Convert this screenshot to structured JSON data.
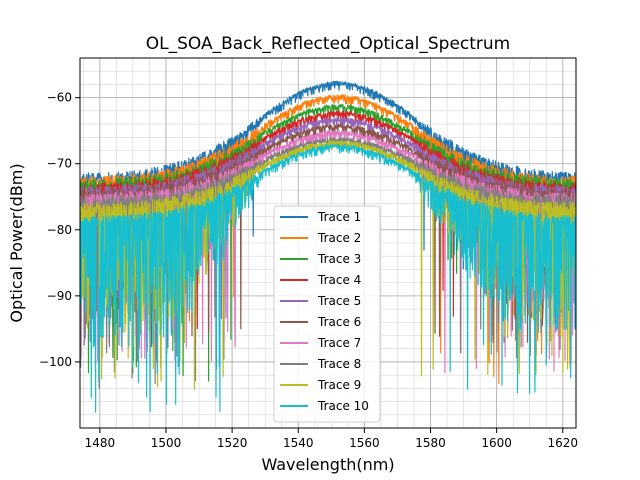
{
  "chart_data": {
    "type": "line",
    "title": "OL_SOA_Back_Reflected_Optical_Spectrum",
    "xlabel": "Wavelength(nm)",
    "ylabel": "Optical Power(dBm)",
    "xlim": [
      1474,
      1624
    ],
    "ylim": [
      -110,
      -54
    ],
    "xticks": [
      1480,
      1500,
      1520,
      1540,
      1560,
      1580,
      1600,
      1620
    ],
    "yticks": [
      -100,
      -90,
      -80,
      -70,
      -60
    ],
    "grid": true,
    "minor_grid": true,
    "legend_position": "lower-center",
    "series": [
      {
        "name": "Trace 1",
        "color": "#1f77b4",
        "peak": -57.5,
        "edge": -71.5,
        "floor_left": -80,
        "floor_right": -78
      },
      {
        "name": "Trace 2",
        "color": "#ff7f0e",
        "peak": -59.5,
        "edge": -72.0,
        "floor_left": -86,
        "floor_right": -96
      },
      {
        "name": "Trace 3",
        "color": "#2ca02c",
        "peak": -61.0,
        "edge": -72.5,
        "floor_left": -95,
        "floor_right": -82
      },
      {
        "name": "Trace 4",
        "color": "#d62728",
        "peak": -62.0,
        "edge": -73.0,
        "floor_left": -88,
        "floor_right": -86
      },
      {
        "name": "Trace 5",
        "color": "#9467bd",
        "peak": -63.0,
        "edge": -73.5,
        "floor_left": -90,
        "floor_right": -88
      },
      {
        "name": "Trace 6",
        "color": "#8c564b",
        "peak": -64.0,
        "edge": -74.0,
        "floor_left": -92,
        "floor_right": -90
      },
      {
        "name": "Trace 7",
        "color": "#e377c2",
        "peak": -65.0,
        "edge": -74.5,
        "floor_left": -94,
        "floor_right": -94
      },
      {
        "name": "Trace 8",
        "color": "#7f7f7f",
        "peak": -66.0,
        "edge": -75.0,
        "floor_left": -96,
        "floor_right": -92
      },
      {
        "name": "Trace 9",
        "color": "#bcbd22",
        "peak": -66.5,
        "edge": -76.0,
        "floor_left": -97,
        "floor_right": -95
      },
      {
        "name": "Trace 10",
        "color": "#17becf",
        "peak": -67.0,
        "edge": -78.0,
        "floor_left": -100,
        "floor_right": -97
      }
    ]
  }
}
